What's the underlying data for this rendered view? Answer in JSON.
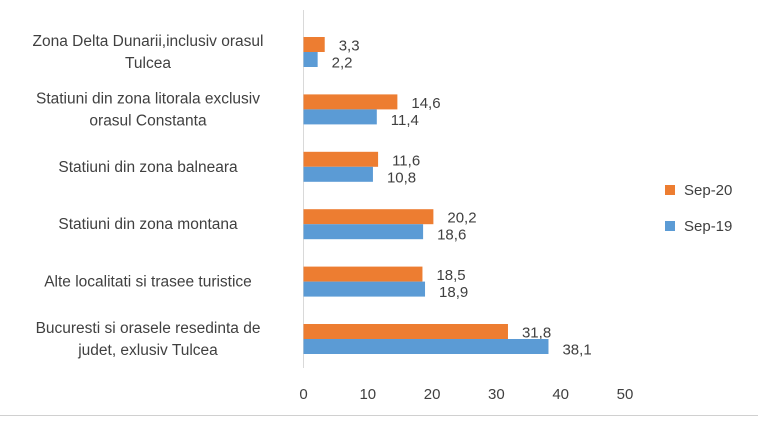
{
  "chart_data": {
    "type": "bar",
    "orientation": "horizontal",
    "title": "",
    "xlabel": "",
    "ylabel": "",
    "categories": [
      [
        "Zona Delta Dunarii,inclusiv  orasul",
        "Tulcea"
      ],
      [
        "Statiuni din zona litorala exclusiv",
        "orasul Constanta"
      ],
      [
        "Statiuni din zona balneara"
      ],
      [
        "Statiuni din zona montana"
      ],
      [
        "Alte localitati si trasee turistice"
      ],
      [
        "Bucuresti si orasele resedinta de",
        "judet, exlusiv Tulcea"
      ]
    ],
    "series": [
      {
        "name": "Sep-20",
        "color": "#ED7D31",
        "values": [
          3.3,
          14.6,
          11.6,
          20.2,
          18.5,
          31.8
        ],
        "labels": [
          "3,3",
          "14,6",
          "11,6",
          "20,2",
          "18,5",
          "31,8"
        ]
      },
      {
        "name": "Sep-19",
        "color": "#5B9BD5",
        "values": [
          2.2,
          11.4,
          10.8,
          18.6,
          18.9,
          38.1
        ],
        "labels": [
          "2,2",
          "11,4",
          "10,8",
          "18,6",
          "18,9",
          "38,1"
        ]
      }
    ],
    "xlim": [
      0,
      50
    ],
    "xticks": [
      "0",
      "10",
      "20",
      "30",
      "40",
      "50"
    ],
    "grid": false,
    "legend": "right"
  }
}
